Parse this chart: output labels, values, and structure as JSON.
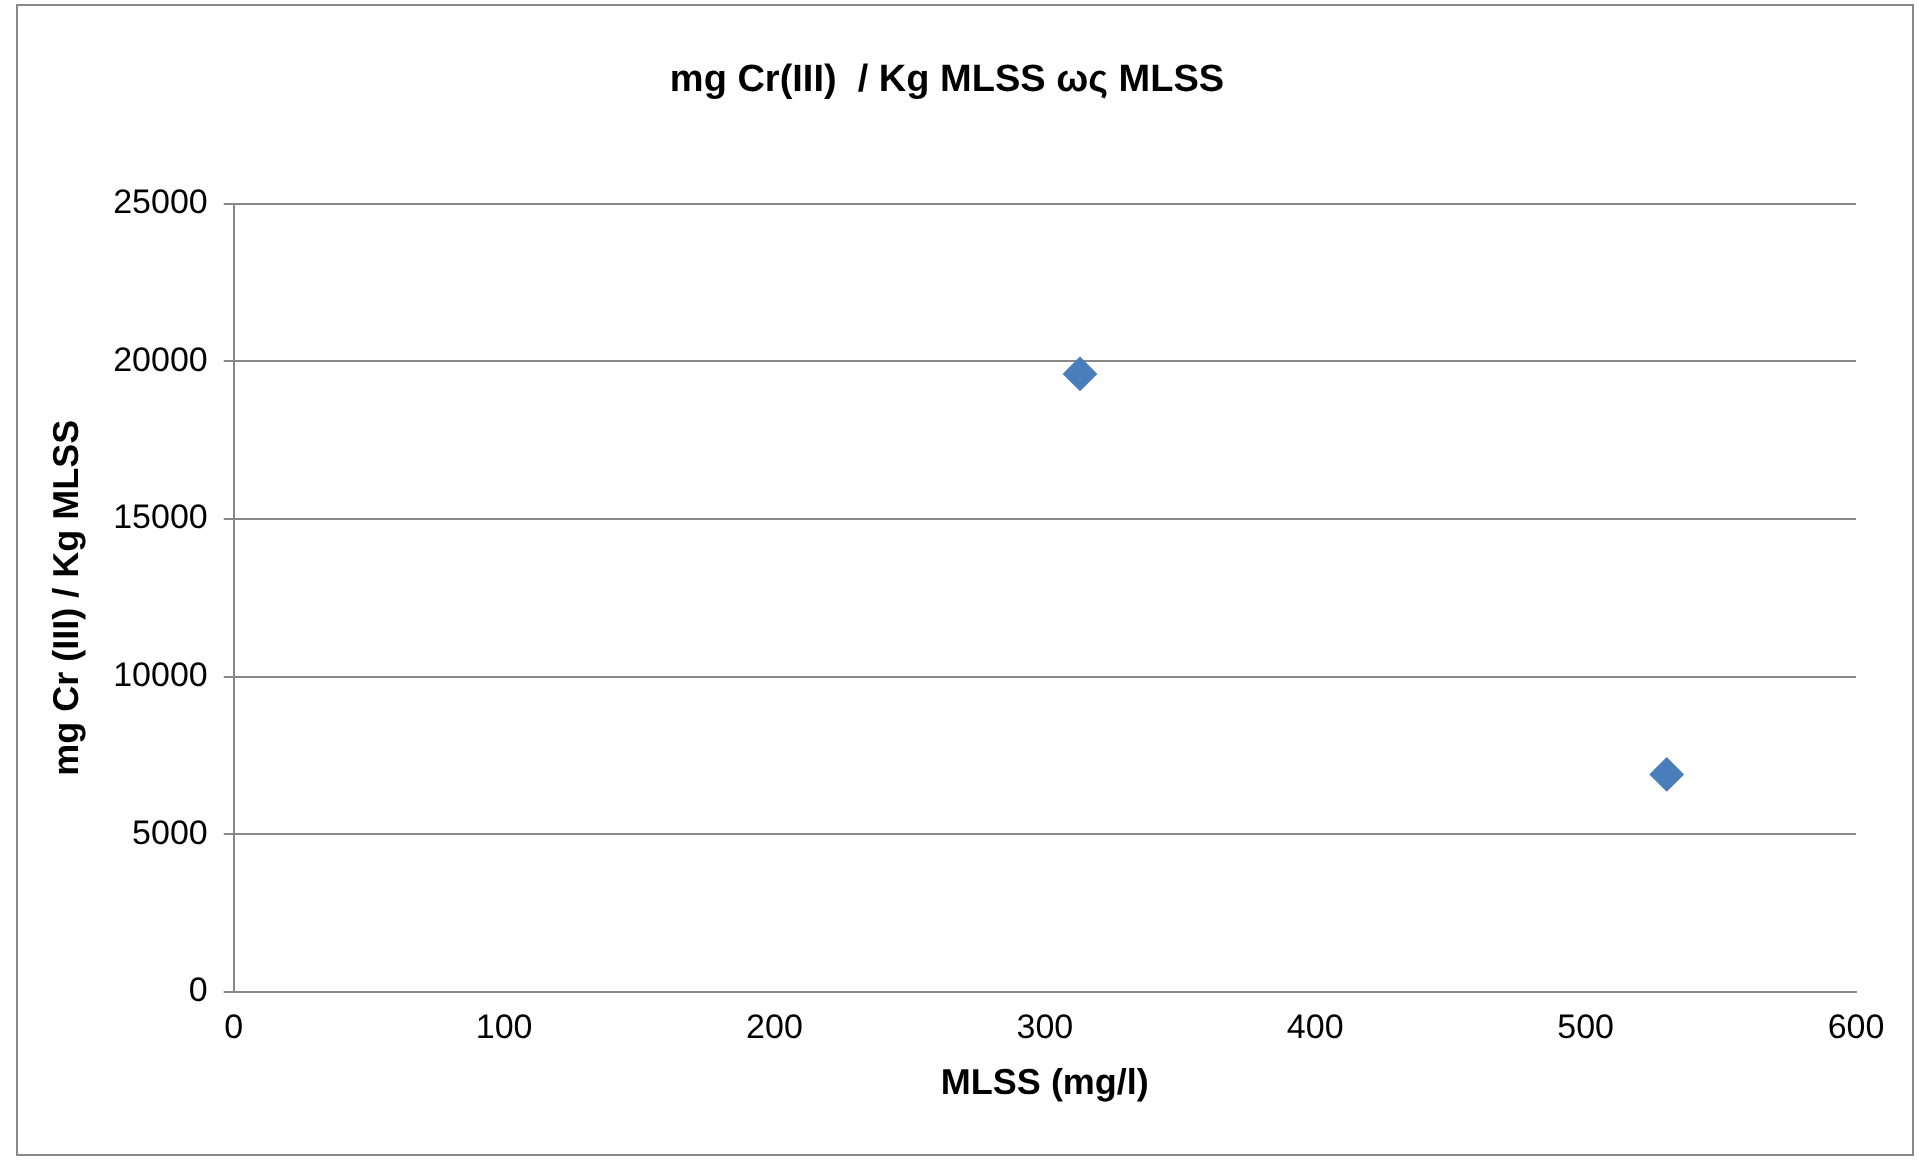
{
  "chart_data": {
    "type": "scatter",
    "title": "mg Cr(III)  / Kg MLSS ως MLSS",
    "xlabel": "MLSS (mg/l)",
    "ylabel": "mg Cr (III) / Kg MLSS",
    "x": [
      313,
      530
    ],
    "values": [
      19600,
      6900
    ],
    "color": "#4a7ebb",
    "marker": "diamond",
    "xlim": [
      0,
      600
    ],
    "xticks": [
      0,
      100,
      200,
      300,
      400,
      500,
      600
    ],
    "ylim": [
      0,
      25000
    ],
    "yticks": [
      0,
      5000,
      10000,
      15000,
      20000,
      25000
    ],
    "grid": "y",
    "legend": false
  }
}
